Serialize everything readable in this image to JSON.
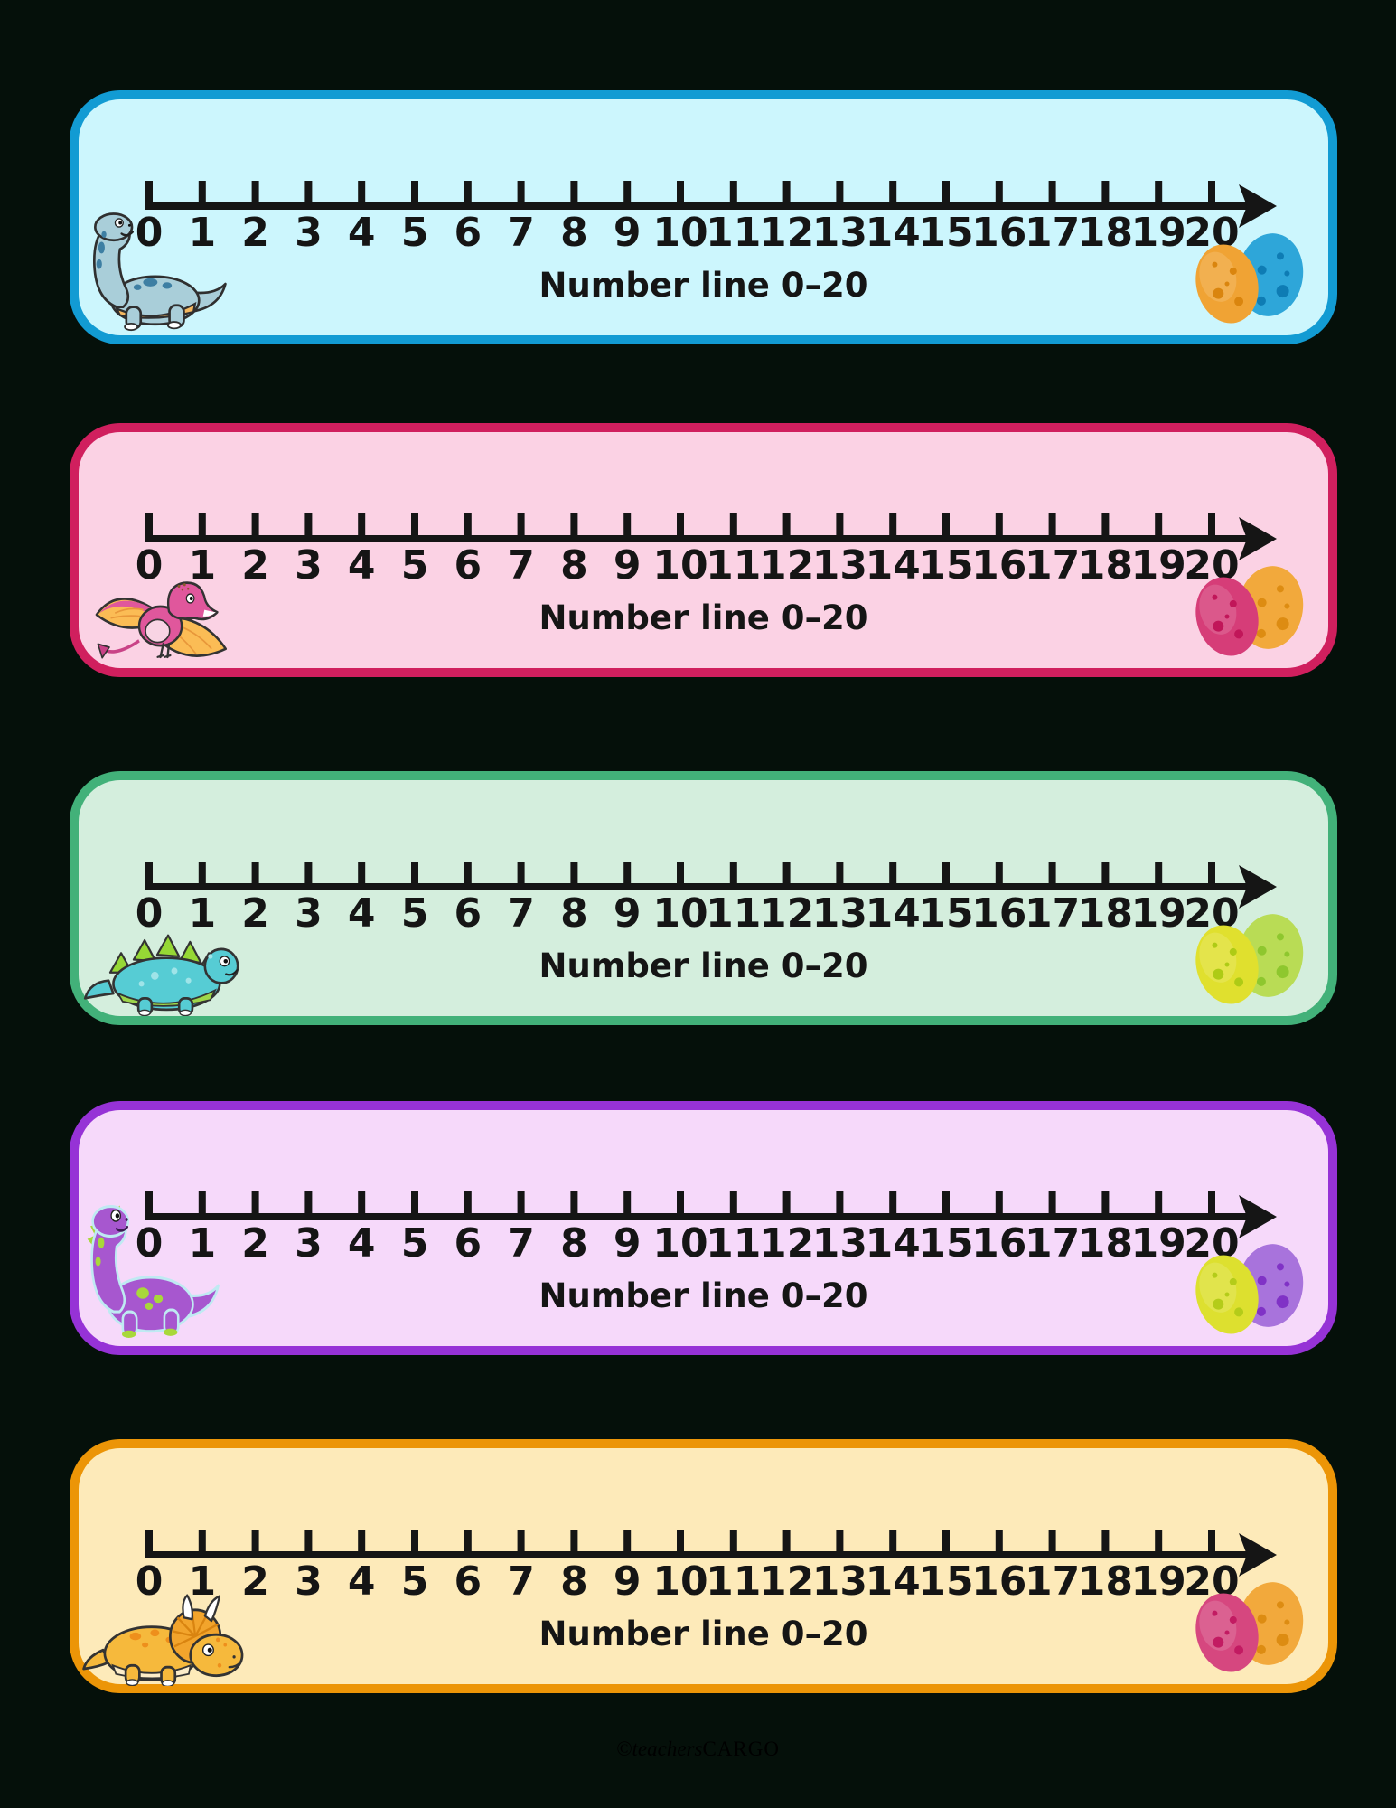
{
  "page": {
    "background": "#05100a",
    "watermark": {
      "prefix": "©teachers",
      "suffix": "CARGO"
    }
  },
  "number_line": {
    "numbers": [
      "0",
      "1",
      "2",
      "3",
      "4",
      "5",
      "6",
      "7",
      "8",
      "9",
      "10",
      "11",
      "12",
      "13",
      "14",
      "15",
      "16",
      "17",
      "18",
      "19",
      "20"
    ],
    "start": 0,
    "end": 20,
    "step": 1
  },
  "cards": [
    {
      "name": "cyan-number-line-card",
      "label": "Number line 0–20",
      "dinosaur": "sauropod",
      "eggs": [
        "orange",
        "blue"
      ],
      "colors": {
        "background": "#ccf6fd",
        "border": "#129bd3",
        "dino_body": "#a9ced9",
        "dino_accent": "#3e7fa3",
        "egg_front": "#f0a334",
        "egg_front_speckle": "#da850e",
        "egg_back": "#2ea6d9",
        "egg_back_speckle": "#0e7cb4"
      }
    },
    {
      "name": "pink-number-line-card",
      "label": "Number line 0–20",
      "dinosaur": "pterodactyl",
      "eggs": [
        "pink",
        "orange"
      ],
      "colors": {
        "background": "#fbd2e4",
        "border": "#d01f5e",
        "dino_body": "#e0579c",
        "dino_accent": "#fbbc55",
        "egg_front": "#d63d78",
        "egg_front_speckle": "#c11659",
        "egg_back": "#f2a93c",
        "egg_back_speckle": "#dd8c12"
      }
    },
    {
      "name": "green-number-line-card",
      "label": "Number line 0–20",
      "dinosaur": "stegosaurus",
      "eggs": [
        "yellow",
        "green"
      ],
      "colors": {
        "background": "#d4eedd",
        "border": "#42b179",
        "dino_body": "#56ccd4",
        "dino_accent": "#96d835",
        "egg_front": "#e0e02e",
        "egg_front_speckle": "#aecb15",
        "egg_back": "#b9dc55",
        "egg_back_speckle": "#8ec72e"
      }
    },
    {
      "name": "purple-number-line-card",
      "label": "Number line 0–20",
      "dinosaur": "sauropod",
      "eggs": [
        "yellow-green",
        "purple"
      ],
      "colors": {
        "background": "#f6d9fa",
        "border": "#9632d6",
        "dino_body": "#a757cf",
        "dino_accent": "#a8d83a",
        "egg_front": "#dde02f",
        "egg_front_speckle": "#b4cc19",
        "egg_back": "#a873dc",
        "egg_back_speckle": "#8032c6"
      }
    },
    {
      "name": "orange-number-line-card",
      "label": "Number line 0–20",
      "dinosaur": "triceratops",
      "eggs": [
        "pink",
        "orange"
      ],
      "colors": {
        "background": "#fdeab9",
        "border": "#ec9507",
        "dino_body": "#f6b93c",
        "dino_accent": "#ee8f1c",
        "egg_front": "#d6477f",
        "egg_front_speckle": "#c21b62",
        "egg_back": "#f2a93c",
        "egg_back_speckle": "#dd8c12"
      }
    }
  ]
}
